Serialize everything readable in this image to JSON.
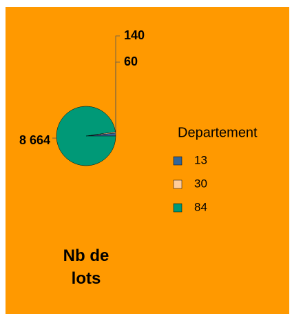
{
  "chart_data": {
    "type": "pie",
    "title": "Nb de lots",
    "legend_title": "Departement",
    "categories": [
      "13",
      "30",
      "84"
    ],
    "values": [
      140,
      60,
      8664
    ],
    "value_labels": [
      "140",
      "60",
      "8 664"
    ],
    "colors": [
      "#336699",
      "#ffcc99",
      "#009977"
    ],
    "legend": "right"
  }
}
